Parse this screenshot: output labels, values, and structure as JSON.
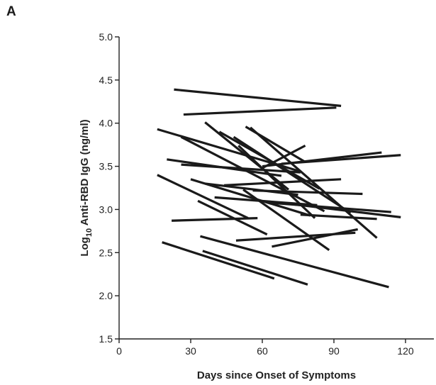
{
  "panel_label": "A",
  "chart_data": {
    "type": "line",
    "title": "",
    "xlabel": "Days since Onset of Symptoms",
    "ylabel_prefix": "Log",
    "ylabel_subscript": "10",
    "ylabel_suffix": " Anti-RBD IgG (ng/ml)",
    "xlim": [
      0,
      130
    ],
    "ylim": [
      1.5,
      5.0
    ],
    "xticks": [
      0,
      30,
      60,
      90,
      120
    ],
    "xtick_labels": [
      "0",
      "30",
      "60",
      "90",
      "120"
    ],
    "yticks": [
      1.5,
      2.0,
      2.5,
      3.0,
      3.5,
      4.0,
      4.5,
      5.0
    ],
    "ytick_labels": [
      "1.5",
      "2.0",
      "2.5",
      "3.0",
      "3.5",
      "4.0",
      "4.5",
      "5.0"
    ],
    "grid": false,
    "legend": false,
    "series": [
      {
        "x": [
          23,
          93
        ],
        "y": [
          4.39,
          4.2
        ]
      },
      {
        "x": [
          27,
          91
        ],
        "y": [
          4.1,
          4.18
        ]
      },
      {
        "x": [
          16,
          76
        ],
        "y": [
          3.93,
          3.44
        ]
      },
      {
        "x": [
          26,
          86
        ],
        "y": [
          3.84,
          2.98
        ]
      },
      {
        "x": [
          36,
          71
        ],
        "y": [
          4.01,
          3.23
        ]
      },
      {
        "x": [
          42,
          84
        ],
        "y": [
          3.9,
          3.24
        ]
      },
      {
        "x": [
          48,
          97
        ],
        "y": [
          3.84,
          2.96
        ]
      },
      {
        "x": [
          50,
          82
        ],
        "y": [
          3.74,
          2.9
        ]
      },
      {
        "x": [
          53,
          78
        ],
        "y": [
          3.96,
          3.55
        ]
      },
      {
        "x": [
          55,
          108
        ],
        "y": [
          3.95,
          2.67
        ]
      },
      {
        "x": [
          60,
          78
        ],
        "y": [
          3.48,
          3.74
        ]
      },
      {
        "x": [
          60,
          110
        ],
        "y": [
          3.5,
          3.66
        ]
      },
      {
        "x": [
          68,
          118
        ],
        "y": [
          3.53,
          3.63
        ]
      },
      {
        "x": [
          20,
          68
        ],
        "y": [
          3.58,
          3.39
        ]
      },
      {
        "x": [
          26,
          76
        ],
        "y": [
          3.52,
          3.43
        ]
      },
      {
        "x": [
          30,
          80
        ],
        "y": [
          3.35,
          2.93
        ]
      },
      {
        "x": [
          33,
          62
        ],
        "y": [
          3.1,
          2.71
        ]
      },
      {
        "x": [
          36,
          75
        ],
        "y": [
          3.3,
          3.17
        ]
      },
      {
        "x": [
          40,
          83
        ],
        "y": [
          3.14,
          3.05
        ]
      },
      {
        "x": [
          44,
          93
        ],
        "y": [
          3.28,
          3.35
        ]
      },
      {
        "x": [
          52,
          88
        ],
        "y": [
          3.23,
          2.53
        ]
      },
      {
        "x": [
          56,
          102
        ],
        "y": [
          3.22,
          3.18
        ]
      },
      {
        "x": [
          62,
          114
        ],
        "y": [
          3.08,
          2.97
        ]
      },
      {
        "x": [
          70,
          118
        ],
        "y": [
          3.07,
          2.91
        ]
      },
      {
        "x": [
          16,
          54
        ],
        "y": [
          3.4,
          2.9
        ]
      },
      {
        "x": [
          22,
          58
        ],
        "y": [
          2.87,
          2.9
        ]
      },
      {
        "x": [
          49,
          99
        ],
        "y": [
          2.64,
          2.73
        ]
      },
      {
        "x": [
          64,
          100
        ],
        "y": [
          2.57,
          2.77
        ]
      },
      {
        "x": [
          76,
          108
        ],
        "y": [
          2.94,
          2.89
        ]
      },
      {
        "x": [
          18,
          65
        ],
        "y": [
          2.62,
          2.2
        ]
      },
      {
        "x": [
          35,
          79
        ],
        "y": [
          2.52,
          2.13
        ]
      },
      {
        "x": [
          34,
          113
        ],
        "y": [
          2.69,
          2.1
        ]
      }
    ]
  }
}
